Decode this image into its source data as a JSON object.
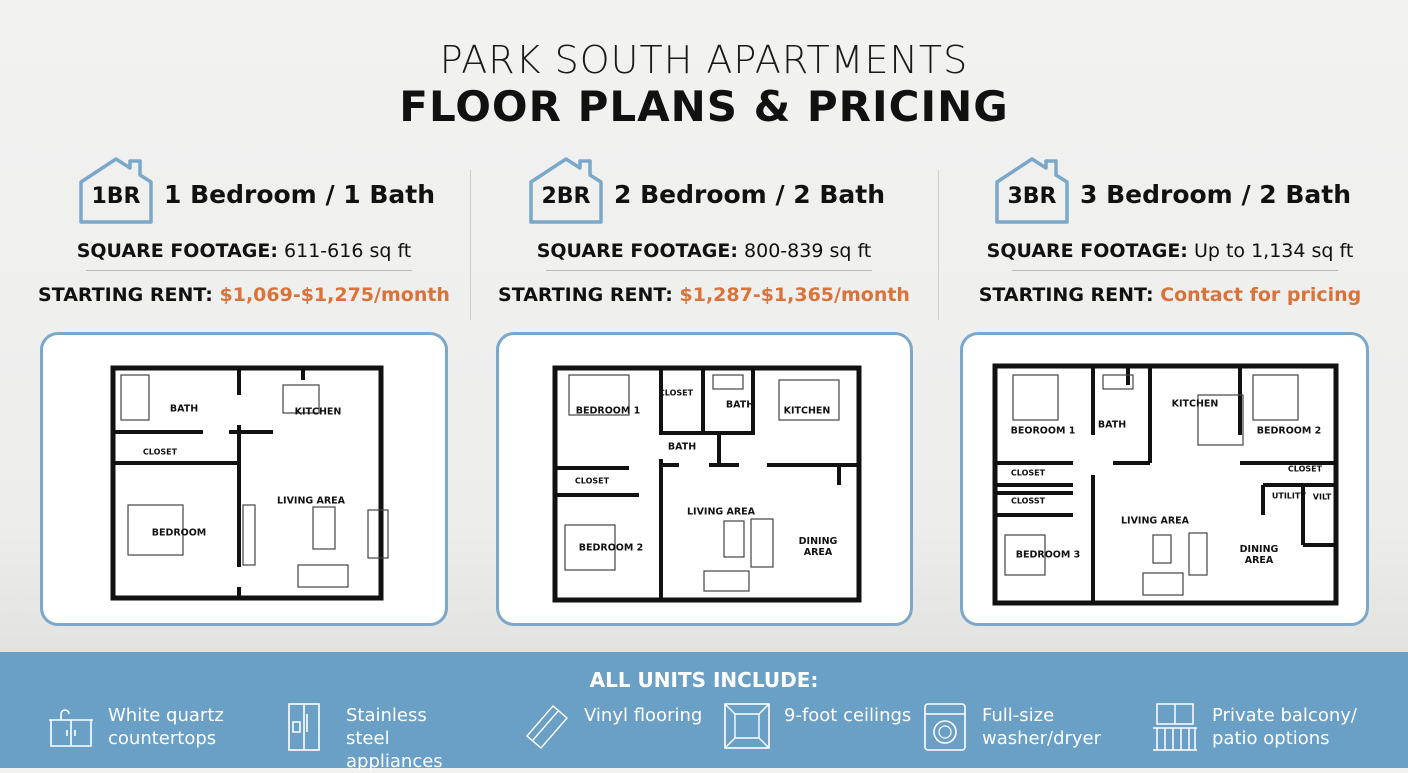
{
  "header": {
    "line1": "PARK SOUTH APARTMENTS",
    "line2": "FLOOR PLANS & PRICING"
  },
  "colors": {
    "accent_blue": "#7ba7c9",
    "price_orange": "#d9733a",
    "footer_blue": "#6a9fc6"
  },
  "units": [
    {
      "badge": "1BR",
      "title": "1 Bedroom / 1 Bath",
      "sqft_label": "SQUARE FOOTAGE:",
      "sqft": "611-616 sq ft",
      "rent_label": "STARTING RENT:",
      "rent": "$1,069-$1,275/month",
      "rooms": [
        "BATH",
        "KITCHEN",
        "CLOSET",
        "BEDROOM",
        "LIVING AREA"
      ]
    },
    {
      "badge": "2BR",
      "title": "2 Bedroom / 2 Bath",
      "sqft_label": "SQUARE FOOTAGE:",
      "sqft": "800-839 sq ft",
      "rent_label": "STARTING RENT:",
      "rent": "$1,287-$1,365/month",
      "rooms": [
        "BEDROOM 1",
        "CLOSET",
        "BATH",
        "BATH",
        "KITCHEN",
        "CLOSET",
        "BEDROOM 2",
        "LIVING AREA",
        "DINING AREA"
      ]
    },
    {
      "badge": "3BR",
      "title": "3 Bedroom / 2 Bath",
      "sqft_label": "SQUARE FOOTAGE:",
      "sqft": "Up to 1,134 sq ft",
      "rent_label": "STARTING RENT:",
      "rent": "Contact for pricing",
      "rooms": [
        "BEOROOM 1",
        "BATH",
        "KITCHEN",
        "BEDROOM 2",
        "CLOSET",
        "CLOSST",
        "CLOSET",
        "UTILITY",
        "VILT",
        "LIVING AREA",
        "BEDROOM 3",
        "DINING AREA"
      ]
    }
  ],
  "footer": {
    "title": "ALL UNITS INCLUDE:",
    "features": [
      {
        "icon": "sink-cabinet-icon",
        "text": "White quartz countertops"
      },
      {
        "icon": "refrigerator-icon",
        "text": "Stainless steel appliances"
      },
      {
        "icon": "vinyl-plank-icon",
        "text": "Vinyl flooring"
      },
      {
        "icon": "ceiling-icon",
        "text": "9-foot ceilings"
      },
      {
        "icon": "washer-icon",
        "text": "Full-size washer/dryer"
      },
      {
        "icon": "balcony-icon",
        "text": "Private balcony/ patio options"
      }
    ]
  }
}
